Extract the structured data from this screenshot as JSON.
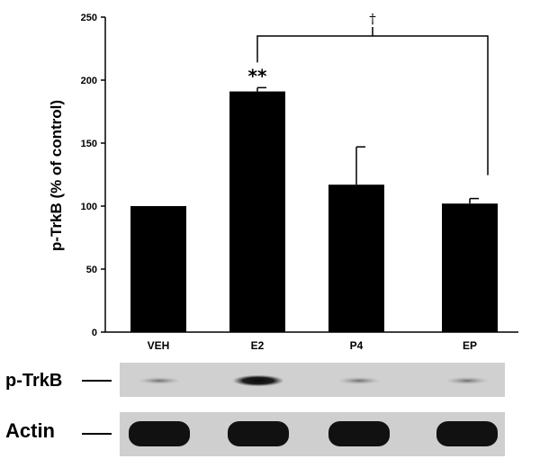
{
  "chart_data": {
    "type": "bar",
    "title": "",
    "xlabel": "",
    "ylabel": "p-TrkB (% of control)",
    "categories": [
      "VEH",
      "E2",
      "P4",
      "EP"
    ],
    "values": [
      100,
      191,
      117,
      102
    ],
    "errors": [
      0,
      3,
      30,
      4
    ],
    "ylim": [
      0,
      250
    ],
    "yticks": [
      "0",
      "50",
      "100",
      "150",
      "200",
      "250"
    ],
    "bar_color": "#000000",
    "significance": [
      {
        "category": "E2",
        "label": "**"
      }
    ],
    "bracket": {
      "from": "E2",
      "to": "EP",
      "label": "†"
    }
  },
  "blot": {
    "lanes": [
      "VEH",
      "E2",
      "P4",
      "EP"
    ],
    "rows": [
      {
        "label": "p-TrkB",
        "band_intensity": [
          0.25,
          0.85,
          0.3,
          0.3
        ]
      },
      {
        "label": "Actin",
        "band_intensity": [
          1,
          1,
          1,
          1
        ]
      }
    ]
  }
}
